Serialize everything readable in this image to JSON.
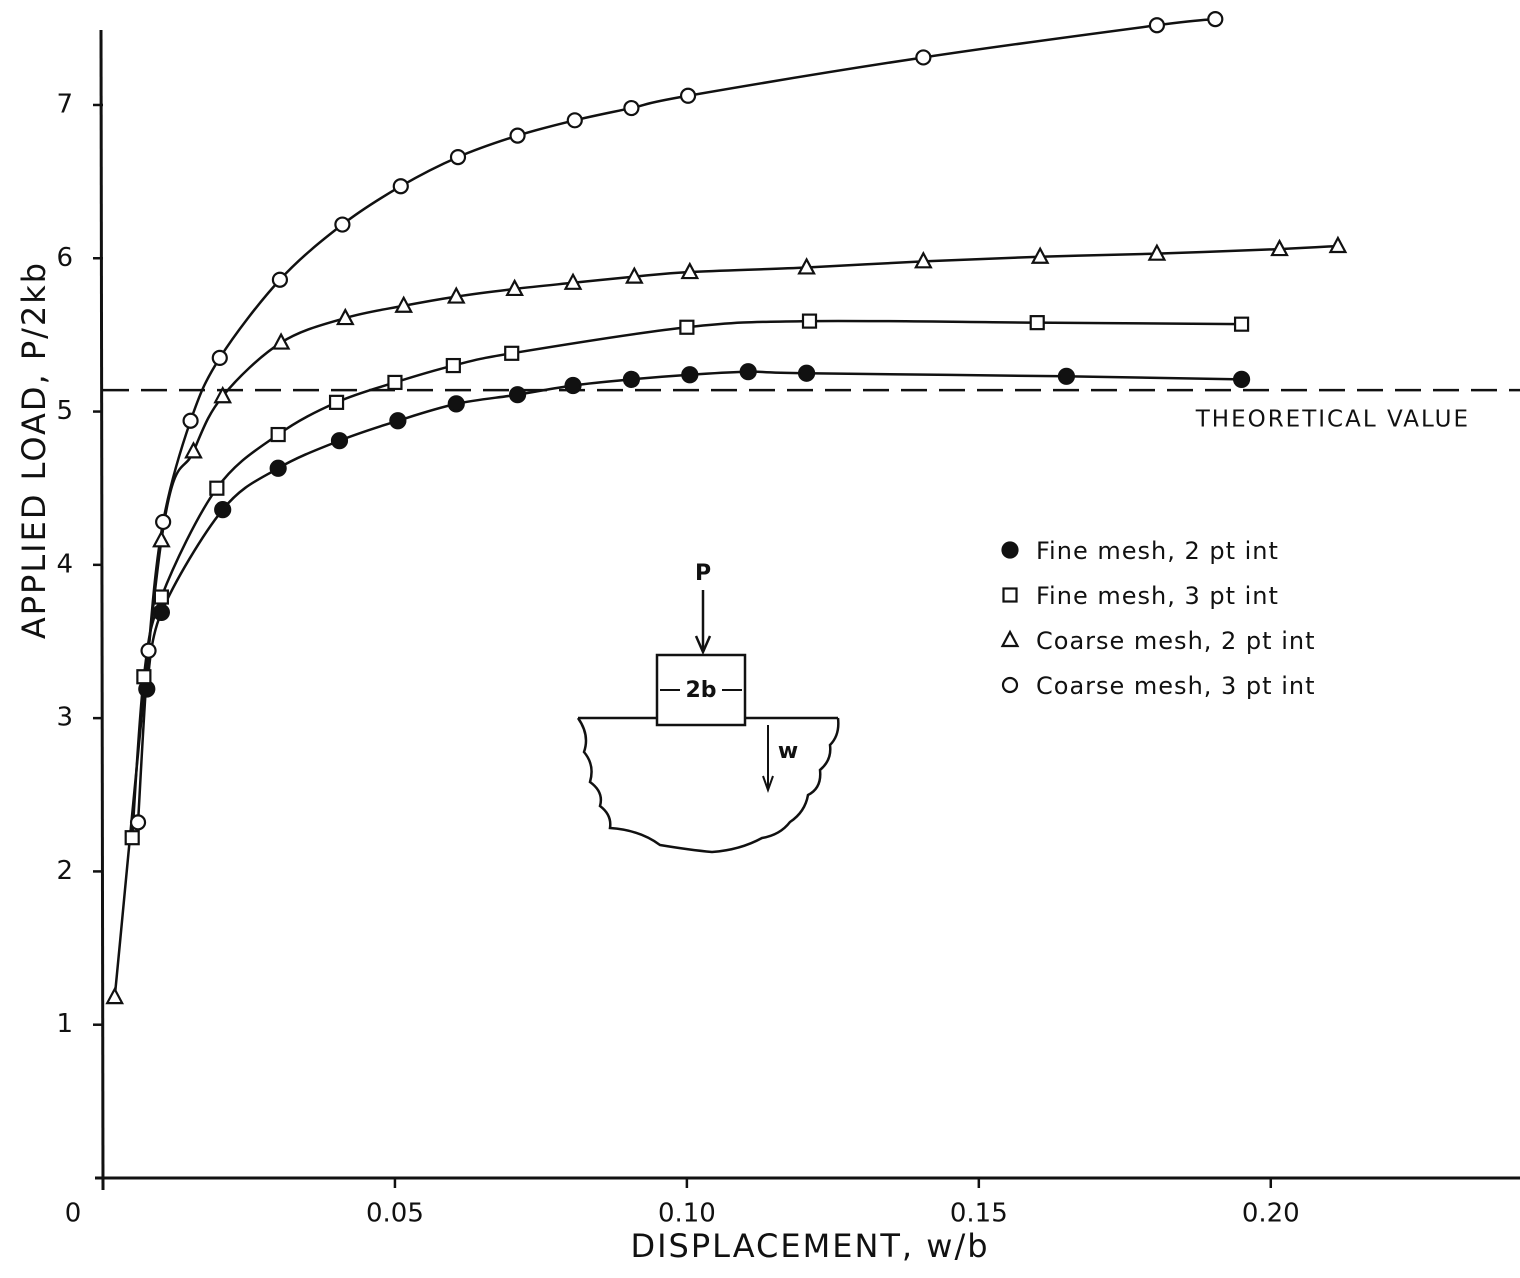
{
  "chart_data": {
    "type": "line",
    "x_label": "DISPLACEMENT,  w/b",
    "y_label": "APPLIED LOAD,  P/2kb",
    "xlim": [
      0,
      0.242
    ],
    "ylim": [
      0,
      7.6
    ],
    "xticks": [
      0,
      0.05,
      {
        "value": 0.1,
        "label": "0.10"
      },
      0.15,
      {
        "value": 0.2,
        "label": "0.20"
      }
    ],
    "yticks": [
      1,
      2,
      3,
      4,
      5,
      6,
      7
    ],
    "legend": "center-right",
    "series": [
      {
        "name": "Fine mesh,  2 pt  int",
        "color": "#111111",
        "marker": "filled-circle",
        "x": [
          0.0075,
          0.01,
          0.0205,
          0.03,
          0.0405,
          0.0505,
          0.0605,
          0.071,
          0.0805,
          0.0905,
          0.1005,
          0.1105,
          0.1205,
          0.165,
          0.195
        ],
        "values": [
          3.19,
          3.69,
          4.36,
          4.63,
          4.81,
          4.94,
          5.05,
          5.11,
          5.17,
          5.21,
          5.24,
          5.26,
          5.25,
          5.23,
          5.21
        ]
      },
      {
        "name": "Fine mesh,  3 pt  int",
        "color": "#111111",
        "marker": "square",
        "x": [
          0.005,
          0.007,
          0.01,
          0.0195,
          0.03,
          0.04,
          0.05,
          0.06,
          0.07,
          0.1,
          0.121,
          0.16,
          0.195
        ],
        "values": [
          2.22,
          3.27,
          3.79,
          4.5,
          4.85,
          5.06,
          5.19,
          5.3,
          5.38,
          5.55,
          5.59,
          5.58,
          5.57
        ]
      },
      {
        "name": "Coarse mesh,  2 pt  int",
        "color": "#111111",
        "marker": "triangle",
        "x": [
          0.002,
          0.01,
          0.0155,
          0.0205,
          0.0305,
          0.0415,
          0.0515,
          0.0605,
          0.0705,
          0.0805,
          0.091,
          0.1005,
          0.1205,
          0.1405,
          0.1605,
          0.1805,
          0.2015,
          0.2115
        ],
        "values": [
          1.18,
          4.16,
          4.74,
          5.1,
          5.45,
          5.61,
          5.69,
          5.75,
          5.8,
          5.84,
          5.88,
          5.91,
          5.94,
          5.98,
          6.01,
          6.03,
          6.06,
          6.08
        ]
      },
      {
        "name": "Coarse mesh,  3 pt  int",
        "color": "#111111",
        "marker": "circle",
        "x": [
          0.006,
          0.0078,
          0.0103,
          0.015,
          0.02,
          0.0303,
          0.041,
          0.051,
          0.0608,
          0.071,
          0.0808,
          0.0905,
          0.1002,
          0.1405,
          0.1805,
          0.1905
        ],
        "values": [
          2.32,
          3.44,
          4.28,
          4.94,
          5.35,
          5.86,
          6.22,
          6.47,
          6.66,
          6.8,
          6.9,
          6.98,
          7.06,
          7.31,
          7.52,
          7.56
        ]
      }
    ],
    "reference_lines": [
      {
        "value": 5.14,
        "label": "THEORETICAL VALUE"
      }
    ],
    "inset": {
      "labels": [
        "P",
        "2b",
        "w"
      ]
    }
  }
}
